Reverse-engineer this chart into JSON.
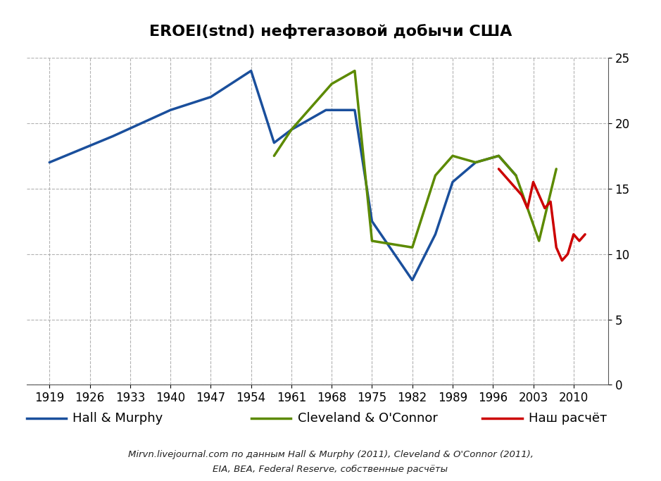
{
  "title": "EROEI(stnd) нефтегазовой добычи США",
  "title_fontsize": 16,
  "ylim": [
    0,
    25
  ],
  "yticks": [
    0,
    5,
    10,
    15,
    20,
    25
  ],
  "xticks": [
    1919,
    1926,
    1933,
    1940,
    1947,
    1954,
    1961,
    1968,
    1975,
    1982,
    1989,
    1996,
    2003,
    2010
  ],
  "hall_murphy_x": [
    1919,
    1930,
    1940,
    1947,
    1954,
    1958,
    1961,
    1967,
    1972,
    1975,
    1982,
    1986,
    1989,
    1993,
    1997,
    2000
  ],
  "hall_murphy_y": [
    17.0,
    19.0,
    21.0,
    22.0,
    24.0,
    18.5,
    19.5,
    21.0,
    21.0,
    12.5,
    8.0,
    11.5,
    15.5,
    17.0,
    17.5,
    16.0
  ],
  "cleveland_x": [
    1958,
    1961,
    1968,
    1972,
    1975,
    1982,
    1986,
    1989,
    1993,
    1997,
    2000,
    2004,
    2007
  ],
  "cleveland_y": [
    17.5,
    19.5,
    23.0,
    24.0,
    11.0,
    10.5,
    16.0,
    17.5,
    17.0,
    17.5,
    16.0,
    11.0,
    16.5
  ],
  "our_calc_x": [
    1997,
    1999,
    2001,
    2002,
    2003,
    2004,
    2005,
    2006,
    2007,
    2008,
    2009,
    2010,
    2011,
    2012
  ],
  "our_calc_y": [
    16.5,
    15.5,
    14.5,
    13.5,
    15.5,
    14.5,
    13.5,
    14.0,
    10.5,
    9.5,
    10.0,
    11.5,
    11.0,
    11.5
  ],
  "hm_color": "#1a4f9c",
  "co_color": "#5c8a00",
  "oc_color": "#cc0000",
  "linewidth": 2.5,
  "hm_label": "Hall & Murphy",
  "co_label": "Cleveland & O'Connor",
  "oc_label": "Наш расчёт",
  "footnote_line1": "Mirvn.livejournal.com по данным Hall & Murphy (2011), Cleveland & O'Connor (2011),",
  "footnote_line2": "EIA, BEA, Federal Reserve, собственные расчёты",
  "background_color": "#ffffff",
  "grid_color": "#aaaaaa"
}
